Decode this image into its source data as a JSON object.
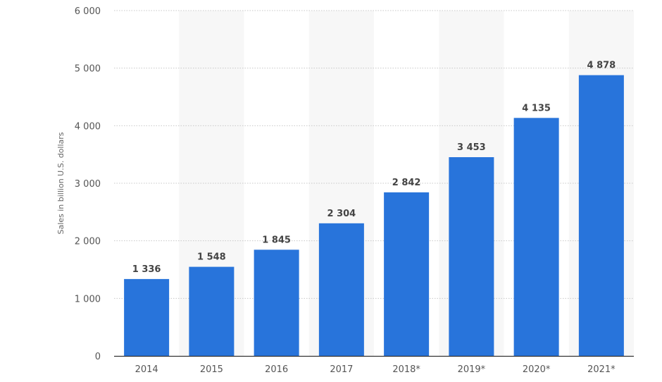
{
  "chart_data": {
    "type": "bar",
    "categories": [
      "2014",
      "2015",
      "2016",
      "2017",
      "2018*",
      "2019*",
      "2020*",
      "2021*"
    ],
    "values": [
      1336,
      1548,
      1845,
      2304,
      2842,
      3453,
      4135,
      4878
    ],
    "value_labels": [
      "1 336",
      "1 548",
      "1 845",
      "2 304",
      "2 842",
      "3 453",
      "4 135",
      "4 878"
    ],
    "title": "",
    "xlabel": "",
    "ylabel": "Sales in billion U.S. dollars",
    "ylim": [
      0,
      6000
    ],
    "yticks": [
      0,
      1000,
      2000,
      3000,
      4000,
      5000,
      6000
    ],
    "ytick_labels": [
      "0",
      "1 000",
      "2 000",
      "3 000",
      "4 000",
      "5 000",
      "6 000"
    ],
    "grid": true,
    "legend": "none",
    "colors": {
      "bar": "#2874db",
      "alt_band": "#f7f7f7",
      "grid": "#c8c8c8",
      "axis": "#333333"
    }
  }
}
